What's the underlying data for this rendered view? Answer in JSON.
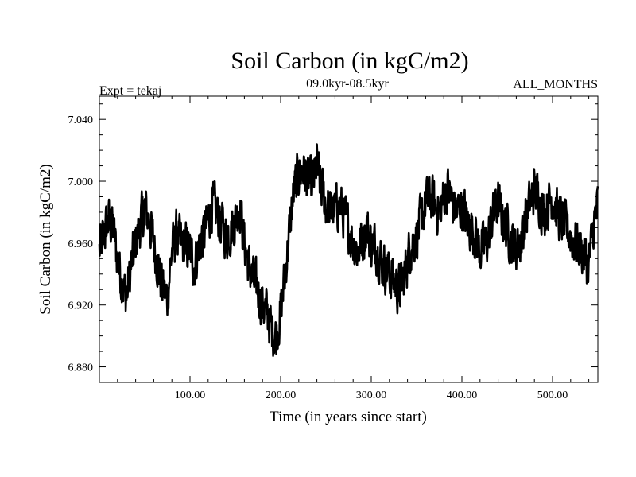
{
  "chart_data": {
    "type": "line",
    "title": "Soil Carbon (in kgC/m2)",
    "subtitle": "09.0kyr-08.5kyr",
    "experiment_label": "Expt = tekaj",
    "period_label": "ALL_MONTHS",
    "xlabel": "Time (in years since start)",
    "ylabel": "Soil Carbon (in kgC/m2)",
    "xlim": [
      0,
      550
    ],
    "ylim": [
      6.87,
      7.055
    ],
    "x_ticks": [
      {
        "value": 100,
        "label": "100.00"
      },
      {
        "value": 200,
        "label": "200.00"
      },
      {
        "value": 300,
        "label": "300.00"
      },
      {
        "value": 400,
        "label": "400.00"
      },
      {
        "value": 500,
        "label": "500.00"
      }
    ],
    "y_ticks": [
      {
        "value": 6.88,
        "label": "6.880"
      },
      {
        "value": 6.92,
        "label": "6.920"
      },
      {
        "value": 6.96,
        "label": "6.960"
      },
      {
        "value": 7.0,
        "label": "7.000"
      },
      {
        "value": 7.04,
        "label": "7.040"
      }
    ],
    "series": [
      {
        "name": "Soil Carbon",
        "color": "#000000",
        "x": [
          0,
          5,
          10,
          15,
          20,
          25,
          30,
          35,
          40,
          45,
          50,
          55,
          60,
          65,
          70,
          75,
          80,
          85,
          90,
          95,
          100,
          105,
          110,
          115,
          120,
          125,
          130,
          135,
          140,
          145,
          150,
          155,
          160,
          165,
          170,
          175,
          180,
          185,
          190,
          195,
          200,
          205,
          210,
          215,
          220,
          225,
          230,
          235,
          240,
          245,
          250,
          255,
          260,
          265,
          270,
          275,
          280,
          285,
          290,
          295,
          300,
          305,
          310,
          315,
          320,
          325,
          330,
          335,
          340,
          345,
          350,
          355,
          360,
          365,
          370,
          375,
          380,
          385,
          390,
          395,
          400,
          405,
          410,
          415,
          420,
          425,
          430,
          435,
          440,
          445,
          450,
          455,
          460,
          465,
          470,
          475,
          480,
          485,
          490,
          495,
          500,
          505,
          510,
          515,
          520,
          525,
          530,
          535,
          540,
          545,
          550
        ],
        "values": [
          6.955,
          6.965,
          6.975,
          6.97,
          6.95,
          6.935,
          6.925,
          6.945,
          6.96,
          6.972,
          6.982,
          6.975,
          6.96,
          6.945,
          6.93,
          6.925,
          6.955,
          6.965,
          6.96,
          6.958,
          6.955,
          6.945,
          6.96,
          6.965,
          6.975,
          6.985,
          6.978,
          6.972,
          6.965,
          6.968,
          6.975,
          6.985,
          6.96,
          6.945,
          6.935,
          6.93,
          6.92,
          6.915,
          6.905,
          6.9,
          6.915,
          6.94,
          6.97,
          6.995,
          7.005,
          7.008,
          7.0,
          6.998,
          7.01,
          6.995,
          6.985,
          6.98,
          6.982,
          6.985,
          6.978,
          6.97,
          6.96,
          6.955,
          6.962,
          6.97,
          6.96,
          6.958,
          6.95,
          6.945,
          6.94,
          6.935,
          6.93,
          6.935,
          6.95,
          6.96,
          6.965,
          6.975,
          6.985,
          6.99,
          6.985,
          6.98,
          6.99,
          6.995,
          6.985,
          6.98,
          6.985,
          6.975,
          6.97,
          6.965,
          6.955,
          6.958,
          6.965,
          6.98,
          6.985,
          6.975,
          6.97,
          6.96,
          6.958,
          6.962,
          6.975,
          6.985,
          6.995,
          6.99,
          6.98,
          6.985,
          6.99,
          6.98,
          6.975,
          6.97,
          6.965,
          6.96,
          6.958,
          6.952,
          6.945,
          6.97,
          6.985
        ]
      }
    ]
  }
}
